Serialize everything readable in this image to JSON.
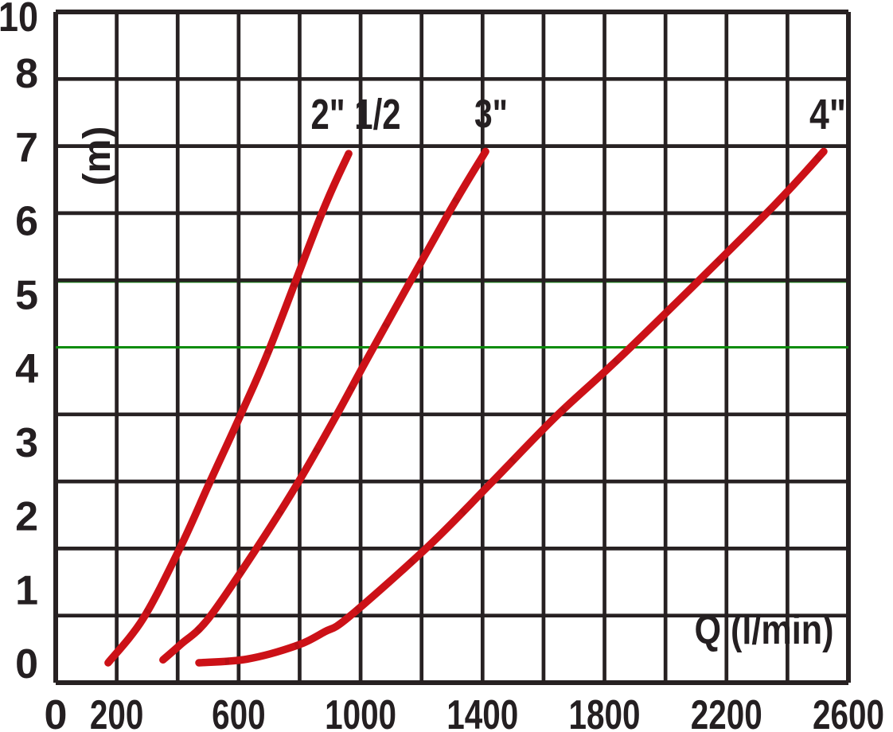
{
  "chart_data": {
    "type": "line",
    "title": "",
    "xlabel": "Q (l/min)",
    "ylabel": "(m)",
    "x_ticks": [
      "0",
      "200",
      "600",
      "1000",
      "1400",
      "1800",
      "2200",
      "2600"
    ],
    "y_ticks": [
      "0",
      "1",
      "2",
      "3",
      "4",
      "5",
      "6",
      "7",
      "8",
      "10"
    ],
    "xlim": [
      0,
      2600
    ],
    "ylim": [
      0,
      10
    ],
    "grid": true,
    "reference_lines": [
      {
        "axis": "y",
        "value": 4.3,
        "color": "#0d8c0d",
        "style": "solid"
      },
      {
        "axis": "y",
        "value": 5.0,
        "color": "#0d8c0d",
        "style": "solid",
        "note": "mostly hidden behind gridline"
      }
    ],
    "series": [
      {
        "name": "2\" 1/2",
        "color": "#cc1117",
        "points": [
          [
            172,
            0.0
          ],
          [
            287,
            0.6
          ],
          [
            410,
            1.58
          ],
          [
            504,
            2.44
          ],
          [
            606,
            3.36
          ],
          [
            702,
            4.27
          ],
          [
            872,
            6.09
          ],
          [
            961,
            6.91
          ]
        ]
      },
      {
        "name": "3\"",
        "color": "#cc1117",
        "points": [
          [
            352,
            0.04
          ],
          [
            410,
            0.25
          ],
          [
            501,
            0.6
          ],
          [
            663,
            1.58
          ],
          [
            794,
            2.44
          ],
          [
            921,
            3.36
          ],
          [
            1041,
            4.27
          ],
          [
            1287,
            6.09
          ],
          [
            1410,
            6.94
          ]
        ]
      },
      {
        "name": "4\"",
        "color": "#cc1117",
        "points": [
          [
            470,
            0.0
          ],
          [
            627,
            0.05
          ],
          [
            788,
            0.23
          ],
          [
            882,
            0.42
          ],
          [
            961,
            0.62
          ],
          [
            1222,
            1.58
          ],
          [
            1428,
            2.44
          ],
          [
            1645,
            3.36
          ],
          [
            1880,
            4.26
          ],
          [
            2331,
            6.1
          ],
          [
            2519,
            6.94
          ]
        ]
      }
    ]
  },
  "colors": {
    "grid": "#272122",
    "text": "#241f21",
    "curve": "#cc1117",
    "curve_shade": "#b90f15",
    "reference": "#0d8c0d",
    "background": "#ffffff"
  }
}
